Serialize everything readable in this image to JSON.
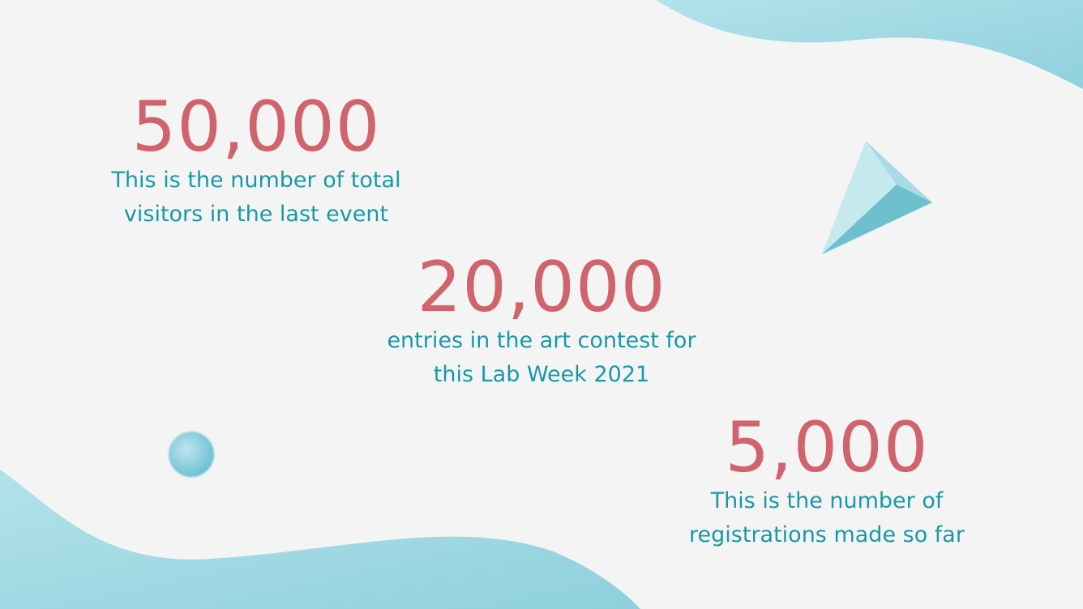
{
  "stats": [
    {
      "number": "50,000",
      "line1": "This is the number of total",
      "line2": "visitors in the last event"
    },
    {
      "number": "20,000",
      "line1": "entries in the art contest for",
      "line2": "this Lab Week 2021"
    },
    {
      "number": "5,000",
      "line1": "This is the number of",
      "line2": "registrations made so far"
    }
  ],
  "colors": {
    "number": "#d0636c",
    "text": "#1a98a8",
    "accent": "#9fd8e3",
    "background": "#f4f4f4"
  }
}
